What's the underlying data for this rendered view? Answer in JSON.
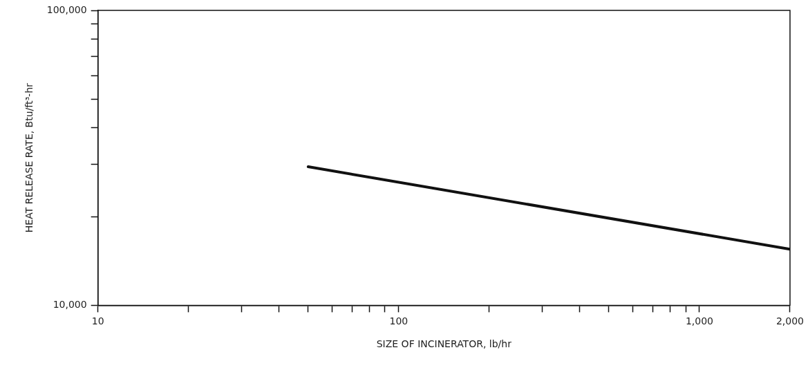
{
  "chart_data": {
    "type": "line",
    "xlabel": "SIZE OF INCINERATOR, lb/hr",
    "ylabel": "HEAT RELEASE RATE, Btu/ft³-hr",
    "log": "xy",
    "grid": false,
    "marker": "none",
    "line_style": "solid",
    "x": [
      50,
      2000
    ],
    "series": [
      {
        "color": "#111111",
        "values": [
          29500,
          15500
        ]
      }
    ],
    "xlim": [
      10,
      2000
    ],
    "ylim": [
      10000,
      100000
    ],
    "xticks": [
      10,
      {
        "value": 20,
        "label": null
      },
      {
        "value": 30,
        "label": null
      },
      {
        "value": 40,
        "label": null
      },
      {
        "value": 50,
        "label": null
      },
      {
        "value": 60,
        "label": null
      },
      {
        "value": 70,
        "label": null
      },
      {
        "value": 80,
        "label": null
      },
      {
        "value": 90,
        "label": null
      },
      100,
      {
        "value": 200,
        "label": null
      },
      {
        "value": 300,
        "label": null
      },
      {
        "value": 400,
        "label": null
      },
      {
        "value": 500,
        "label": null
      },
      {
        "value": 600,
        "label": null
      },
      {
        "value": 700,
        "label": null
      },
      {
        "value": 800,
        "label": null
      },
      {
        "value": 900,
        "label": null
      },
      {
        "value": 1000,
        "label": "1,000"
      },
      {
        "value": 2000,
        "label": "2,000"
      }
    ],
    "yticks": [
      {
        "value": 10000,
        "label": "10,000"
      },
      {
        "value": 20000,
        "label": null
      },
      {
        "value": 30000,
        "label": null
      },
      {
        "value": 40000,
        "label": null
      },
      {
        "value": 50000,
        "label": null
      },
      {
        "value": 60000,
        "label": null
      },
      {
        "value": 70000,
        "label": null
      },
      {
        "value": 80000,
        "label": null
      },
      {
        "value": 90000,
        "label": null
      },
      {
        "value": 100000,
        "label": "100,000"
      }
    ]
  }
}
